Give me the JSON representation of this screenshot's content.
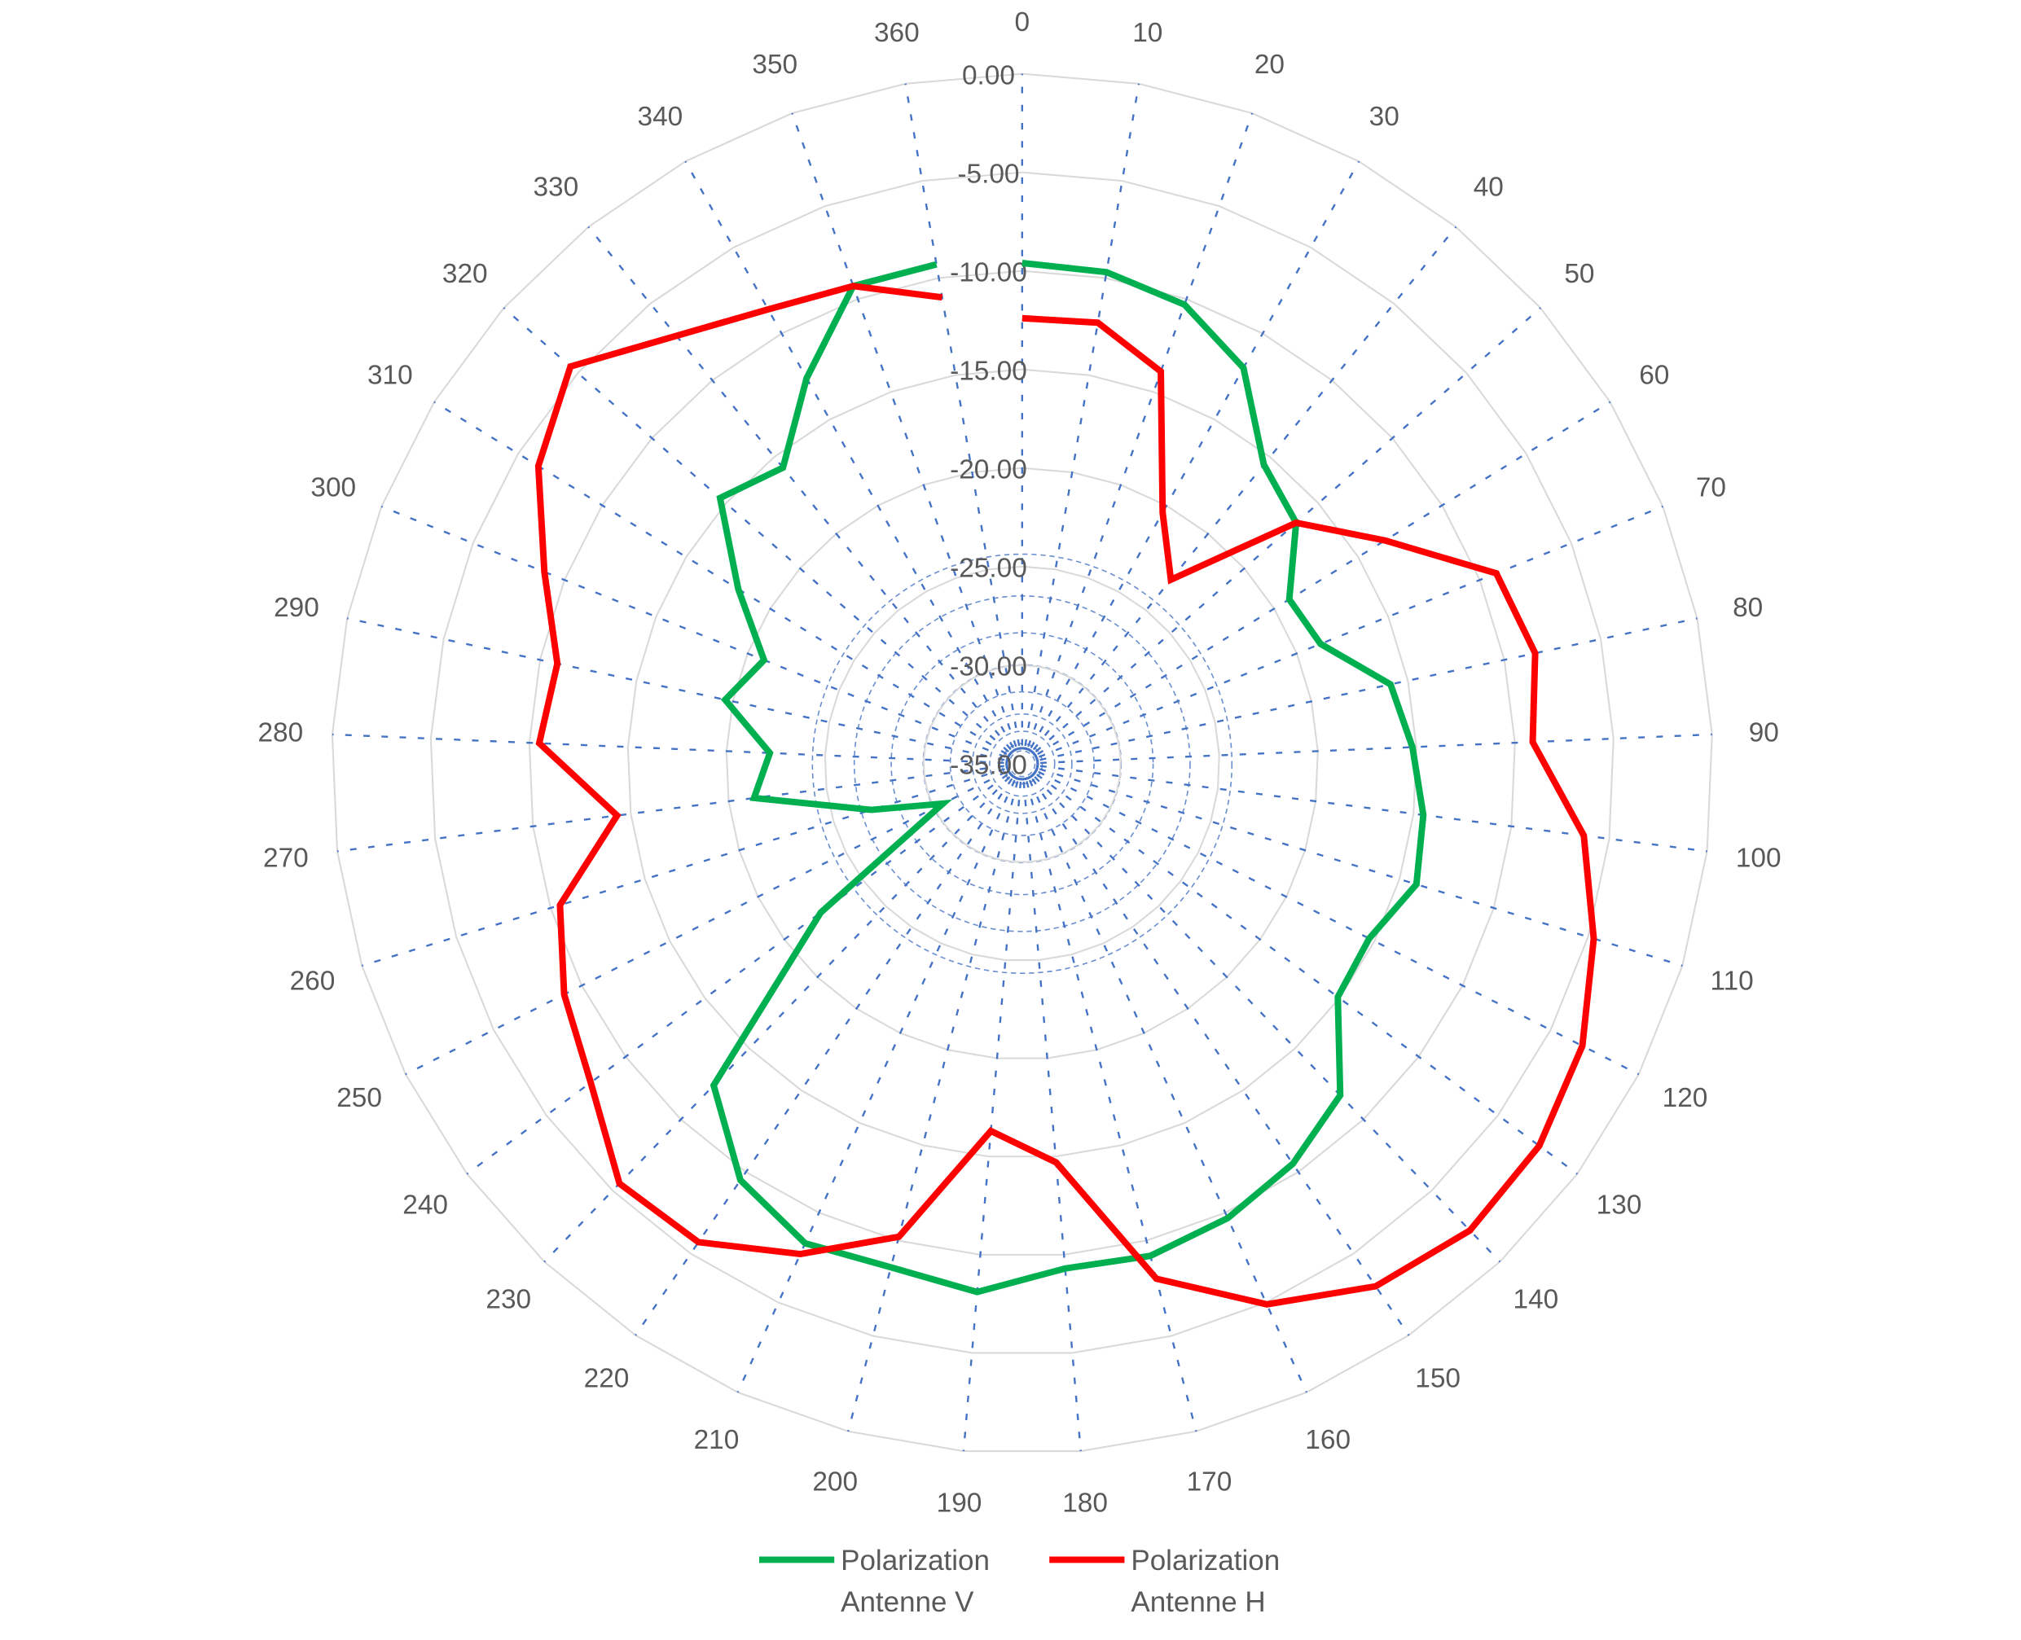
{
  "chart_data": {
    "type": "radar",
    "title": "",
    "categories": [
      "0",
      "10",
      "20",
      "30",
      "40",
      "50",
      "60",
      "70",
      "80",
      "90",
      "100",
      "110",
      "120",
      "130",
      "140",
      "150",
      "160",
      "170",
      "180",
      "190",
      "200",
      "210",
      "220",
      "230",
      "240",
      "250",
      "260",
      "270",
      "280",
      "290",
      "300",
      "310",
      "320",
      "330",
      "340",
      "350",
      "360"
    ],
    "radial_axis": {
      "min": -35,
      "max": 0,
      "major_step": 5,
      "tick_labels": [
        "0.00",
        "-5.00",
        "-10.00",
        "-15.00",
        "-20.00",
        "-25.00",
        "-30.00",
        "-35.00"
      ]
    },
    "grid": true,
    "legend_position": "bottom",
    "series": [
      {
        "name": "Polarization Antenne V",
        "name_lines": [
          "Polarization",
          "Antenne V"
        ],
        "color": "#00B050",
        "values": [
          -9.6,
          -9.7,
          -10.3,
          -12.0,
          -15.5,
          -16.5,
          -19.1,
          -18.7,
          -15.9,
          -15.2,
          -14.5,
          -14.1,
          -15.3,
          -15.1,
          -11.7,
          -10.5,
          -9.7,
          -9.2,
          -9.3,
          -8.1,
          -8.6,
          -8.3,
          -9.5,
          -12.4,
          -22.3,
          -30.5,
          -27.0,
          -21.3,
          -22.2,
          -19.6,
          -20.9,
          -18.1,
          -14.6,
          -15.7,
          -12.6,
          -9.3,
          -9.3
        ]
      },
      {
        "name": "Polarization Antenne H",
        "name_lines": [
          "Polarization",
          "Antenne H"
        ],
        "color": "#FF0000",
        "values": [
          -12.4,
          -12.3,
          -13.9,
          -20.4,
          -23.0,
          -16.5,
          -13.4,
          -9.1,
          -8.4,
          -9.1,
          -6.3,
          -4.7,
          -3.2,
          -2.4,
          -2.2,
          -3.0,
          -4.9,
          -8.0,
          -14.7,
          -16.3,
          -10.2,
          -7.7,
          -5.7,
          -5.5,
          -7.8,
          -9.0,
          -10.5,
          -14.3,
          -10.5,
          -10.9,
          -8.9,
          -6.2,
          -4.5,
          -7.1,
          -8.6,
          -9.3,
          -11.0
        ]
      }
    ]
  }
}
